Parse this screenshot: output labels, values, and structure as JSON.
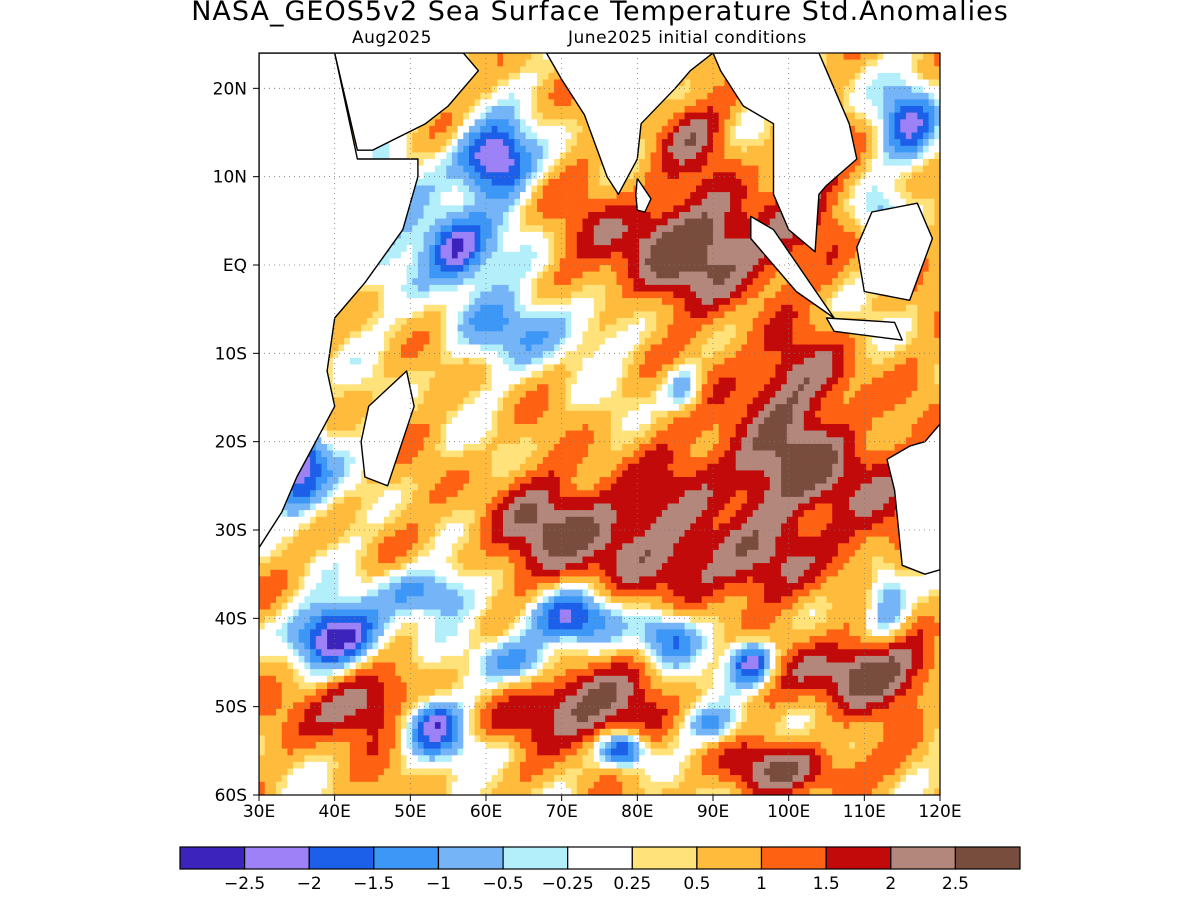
{
  "title": "NASA_GEOS5v2 Sea Surface Temperature Std.Anomalies",
  "subtitle_left": "Aug2025",
  "subtitle_right": "June2025 initial conditions",
  "map": {
    "region": "Indian Ocean",
    "lon_range": [
      30,
      120
    ],
    "lat_range": [
      -60,
      24
    ],
    "lon_ticks": [
      "30E",
      "40E",
      "50E",
      "60E",
      "70E",
      "80E",
      "90E",
      "100E",
      "110E",
      "120E"
    ],
    "lat_ticks": [
      "20N",
      "10N",
      "EQ",
      "10S",
      "20S",
      "30S",
      "40S",
      "50S",
      "60S"
    ],
    "gridlines": true
  },
  "legend": {
    "colors": [
      "#3c23bb",
      "#9c82f6",
      "#1c5fe8",
      "#3c97f6",
      "#76b4f8",
      "#b3eefb",
      "#ffffff",
      "#ffe27a",
      "#ffbc3c",
      "#ff6213",
      "#c30a0a",
      "#b3877c",
      "#794d3e"
    ],
    "labels": [
      "−2.5",
      "−2",
      "−1.5",
      "−1",
      "−0.5",
      "−0.25",
      "0.25",
      "0.5",
      "1",
      "1.5",
      "2",
      "2.5"
    ]
  }
}
